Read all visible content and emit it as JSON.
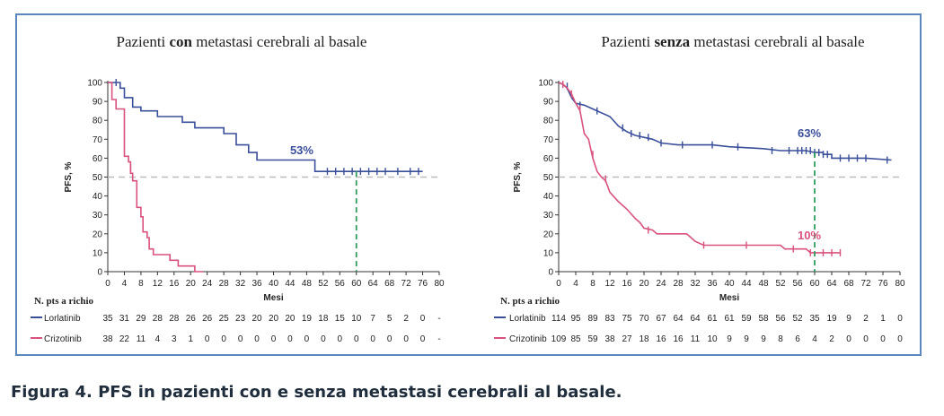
{
  "caption": "Figura 4. PFS in pazienti con e senza metastasi cerebrali al basale.",
  "colors": {
    "lorlatinib": "#3a4f9a",
    "crizotinib": "#d9527d",
    "reference": "#bbbbbb",
    "median": "#2e9b5f",
    "frame": "#5b87bd"
  },
  "chart_data": [
    {
      "type": "line",
      "title_prefix": "Pazienti ",
      "title_bold": "con",
      "title_suffix": " metastasi cerebrali al basale",
      "xlabel": "Mesi",
      "ylabel": "PFS, %",
      "xlim": [
        0,
        80
      ],
      "ylim": [
        0,
        100
      ],
      "xticks": [
        "0",
        "4",
        "8",
        "12",
        "16",
        "20",
        "24",
        "28",
        "32",
        "36",
        "40",
        "44",
        "48",
        "52",
        "56",
        "60",
        "64",
        "68",
        "72",
        "76",
        "80"
      ],
      "yticks": [
        "0",
        "10",
        "20",
        "30",
        "40",
        "50",
        "60",
        "70",
        "80",
        "90",
        "100"
      ],
      "reference_line_y": 50,
      "marker_x": 60,
      "annotations": [
        {
          "text": "53%",
          "series": "Lorlatinib",
          "x": 44,
          "y": 62
        }
      ],
      "series": [
        {
          "name": "Lorlatinib",
          "points": [
            [
              0,
              100
            ],
            [
              3,
              100
            ],
            [
              3,
              97
            ],
            [
              4,
              97
            ],
            [
              4,
              92
            ],
            [
              6,
              92
            ],
            [
              6,
              87
            ],
            [
              8,
              87
            ],
            [
              8,
              85
            ],
            [
              12,
              85
            ],
            [
              12,
              82
            ],
            [
              18,
              82
            ],
            [
              18,
              79
            ],
            [
              21,
              79
            ],
            [
              21,
              76
            ],
            [
              28,
              76
            ],
            [
              28,
              73
            ],
            [
              31,
              73
            ],
            [
              31,
              67
            ],
            [
              34,
              67
            ],
            [
              34,
              63
            ],
            [
              36,
              63
            ],
            [
              36,
              59
            ],
            [
              50,
              59
            ],
            [
              50,
              53
            ],
            [
              76,
              53
            ]
          ],
          "censors": [
            [
              2,
              100
            ],
            [
              53,
              53
            ],
            [
              55,
              53
            ],
            [
              57,
              53
            ],
            [
              59,
              53
            ],
            [
              61,
              53
            ],
            [
              63,
              53
            ],
            [
              65,
              53
            ],
            [
              67,
              53
            ],
            [
              70,
              53
            ],
            [
              73,
              53
            ],
            [
              75,
              53
            ]
          ]
        },
        {
          "name": "Crizotinib",
          "points": [
            [
              0,
              100
            ],
            [
              1,
              100
            ],
            [
              1,
              91
            ],
            [
              2,
              91
            ],
            [
              2,
              86
            ],
            [
              4,
              86
            ],
            [
              4,
              61
            ],
            [
              5,
              61
            ],
            [
              5,
              58
            ],
            [
              5.5,
              58
            ],
            [
              5.5,
              52
            ],
            [
              6,
              52
            ],
            [
              6,
              48
            ],
            [
              7,
              48
            ],
            [
              7,
              34
            ],
            [
              8,
              34
            ],
            [
              8,
              29
            ],
            [
              8.5,
              29
            ],
            [
              8.5,
              21
            ],
            [
              9.5,
              21
            ],
            [
              9.5,
              18
            ],
            [
              10,
              18
            ],
            [
              10,
              12
            ],
            [
              11,
              12
            ],
            [
              11,
              9
            ],
            [
              15,
              9
            ],
            [
              15,
              6
            ],
            [
              17,
              6
            ],
            [
              17,
              3
            ],
            [
              21,
              3
            ],
            [
              21,
              0
            ],
            [
              23,
              0
            ]
          ],
          "censors": [
            [
              5.5,
              55
            ]
          ]
        }
      ],
      "risk_label": "N. pts a richio",
      "risk_rows": [
        {
          "name": "Lorlatinib",
          "values": [
            "35",
            "31",
            "29",
            "28",
            "28",
            "26",
            "26",
            "25",
            "23",
            "20",
            "20",
            "20",
            "19",
            "18",
            "15",
            "10",
            "7",
            "5",
            "2",
            "0",
            "-"
          ]
        },
        {
          "name": "Crizotinib",
          "values": [
            "38",
            "22",
            "11",
            "4",
            "3",
            "1",
            "0",
            "0",
            "0",
            "0",
            "0",
            "0",
            "0",
            "0",
            "0",
            "0",
            "0",
            "0",
            "0",
            "0",
            "-"
          ]
        }
      ]
    },
    {
      "type": "line",
      "title_prefix": "Pazienti ",
      "title_bold": "senza",
      "title_suffix": " metastasi cerebrali al basale",
      "xlabel": "Mesi",
      "ylabel": "PFS, %",
      "xlim": [
        0,
        80
      ],
      "ylim": [
        0,
        100
      ],
      "xticks": [
        "0",
        "4",
        "8",
        "12",
        "16",
        "20",
        "24",
        "28",
        "32",
        "36",
        "40",
        "44",
        "48",
        "52",
        "56",
        "60",
        "64",
        "68",
        "72",
        "76",
        "80"
      ],
      "yticks": [
        "0",
        "10",
        "20",
        "30",
        "40",
        "50",
        "60",
        "70",
        "80",
        "90",
        "100"
      ],
      "reference_line_y": 50,
      "marker_x": 60,
      "annotations": [
        {
          "text": "63%",
          "series": "Lorlatinib",
          "x": 56,
          "y": 71
        },
        {
          "text": "10%",
          "series": "Crizotinib",
          "x": 56,
          "y": 17
        }
      ],
      "series": [
        {
          "name": "Lorlatinib",
          "points": [
            [
              0,
              100
            ],
            [
              1,
              99
            ],
            [
              2,
              97
            ],
            [
              3,
              92
            ],
            [
              4,
              89
            ],
            [
              6,
              88
            ],
            [
              8,
              86
            ],
            [
              10,
              84
            ],
            [
              12,
              82
            ],
            [
              14,
              77
            ],
            [
              16,
              74
            ],
            [
              18,
              72
            ],
            [
              20,
              71
            ],
            [
              22,
              70
            ],
            [
              24,
              68
            ],
            [
              28,
              67
            ],
            [
              36,
              67
            ],
            [
              40,
              66
            ],
            [
              48,
              65
            ],
            [
              52,
              64
            ],
            [
              58,
              64
            ],
            [
              60,
              63
            ],
            [
              62,
              63
            ],
            [
              62,
              62
            ],
            [
              64,
              62
            ],
            [
              64,
              60
            ],
            [
              72,
              60
            ],
            [
              78,
              59
            ]
          ],
          "censors": [
            [
              2,
              98
            ],
            [
              5,
              88
            ],
            [
              9,
              85
            ],
            [
              15,
              76
            ],
            [
              17,
              73
            ],
            [
              19,
              72
            ],
            [
              21,
              71
            ],
            [
              24,
              68
            ],
            [
              29,
              67
            ],
            [
              36,
              67
            ],
            [
              42,
              66
            ],
            [
              50,
              64
            ],
            [
              54,
              64
            ],
            [
              56,
              64
            ],
            [
              57,
              64
            ],
            [
              58,
              64
            ],
            [
              59,
              64
            ],
            [
              60,
              63
            ],
            [
              61,
              63
            ],
            [
              62,
              62
            ],
            [
              63,
              62
            ],
            [
              66,
              60
            ],
            [
              68,
              60
            ],
            [
              70,
              60
            ],
            [
              72,
              60
            ],
            [
              77,
              59
            ]
          ]
        },
        {
          "name": "Crizotinib",
          "points": [
            [
              0,
              100
            ],
            [
              1,
              99
            ],
            [
              2,
              97
            ],
            [
              3,
              94
            ],
            [
              4,
              89
            ],
            [
              5,
              85
            ],
            [
              6,
              73
            ],
            [
              7,
              70
            ],
            [
              7.5,
              65
            ],
            [
              8,
              60
            ],
            [
              9,
              53
            ],
            [
              10,
              50
            ],
            [
              11,
              48
            ],
            [
              12,
              42
            ],
            [
              14,
              37
            ],
            [
              16,
              33
            ],
            [
              18,
              28
            ],
            [
              19,
              26
            ],
            [
              20,
              23
            ],
            [
              22,
              22
            ],
            [
              23,
              20
            ],
            [
              30,
              20
            ],
            [
              31,
              18
            ],
            [
              32,
              16
            ],
            [
              34,
              14
            ],
            [
              44,
              14
            ],
            [
              52,
              14
            ],
            [
              53,
              12
            ],
            [
              58,
              12
            ],
            [
              59,
              10
            ],
            [
              66,
              10
            ]
          ],
          "censors": [
            [
              1,
              99
            ],
            [
              3,
              94
            ],
            [
              5,
              86
            ],
            [
              8,
              62
            ],
            [
              11,
              49
            ],
            [
              21,
              22
            ],
            [
              34,
              14
            ],
            [
              44,
              14
            ],
            [
              55,
              12
            ],
            [
              59,
              10
            ],
            [
              62,
              10
            ],
            [
              64,
              10
            ],
            [
              66,
              10
            ]
          ]
        }
      ],
      "risk_label": "N. pts a richio",
      "risk_rows": [
        {
          "name": "Lorlatinib",
          "values": [
            "114",
            "95",
            "89",
            "83",
            "75",
            "70",
            "67",
            "64",
            "64",
            "61",
            "61",
            "59",
            "58",
            "56",
            "52",
            "35",
            "19",
            "9",
            "2",
            "1",
            "0"
          ]
        },
        {
          "name": "Crizotinib",
          "values": [
            "109",
            "85",
            "59",
            "38",
            "27",
            "18",
            "16",
            "16",
            "11",
            "10",
            "9",
            "9",
            "9",
            "8",
            "6",
            "4",
            "2",
            "0",
            "0",
            "0",
            "0"
          ]
        }
      ]
    }
  ]
}
